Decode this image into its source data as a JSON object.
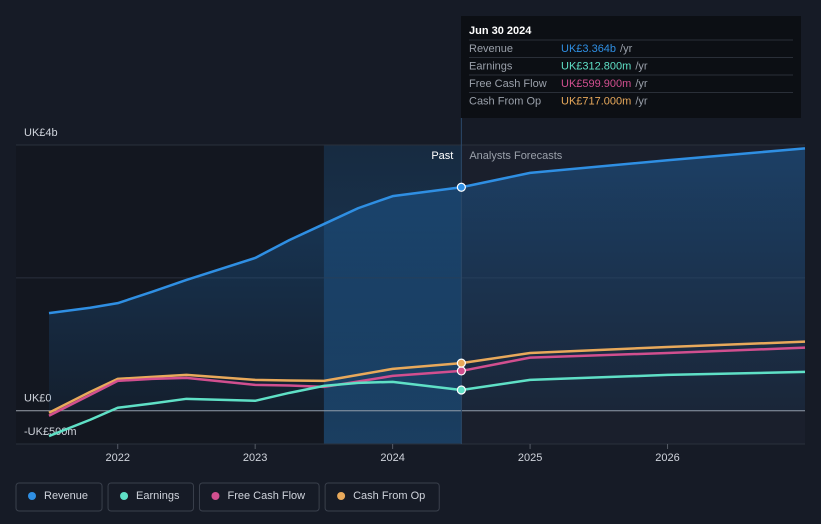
{
  "chart_data": {
    "type": "line",
    "x": [
      2021.5,
      2021.8,
      2022,
      2022.25,
      2022.5,
      2023,
      2023.25,
      2023.5,
      2023.75,
      2024,
      2024.5,
      2025,
      2026,
      2027
    ],
    "series": [
      {
        "name": "Revenue",
        "color": "#2f8fe3",
        "values": [
          1470,
          1550,
          1620,
          1790,
          1970,
          2300,
          2570,
          2810,
          3050,
          3230,
          3364,
          3580,
          3770,
          3950
        ]
      },
      {
        "name": "Earnings",
        "color": "#5fe0c6",
        "values": [
          -380,
          -135,
          45,
          110,
          180,
          150,
          270,
          375,
          420,
          435,
          312.8,
          465,
          540,
          585
        ]
      },
      {
        "name": "Free Cash Flow",
        "color": "#d14f8f",
        "values": [
          -75,
          240,
          450,
          480,
          495,
          390,
          380,
          360,
          440,
          525,
          599.9,
          800,
          870,
          950
        ]
      },
      {
        "name": "Cash From Op",
        "color": "#e8a95b",
        "values": [
          -30,
          285,
          480,
          510,
          540,
          465,
          455,
          450,
          540,
          630,
          717,
          870,
          960,
          1040
        ]
      }
    ],
    "xlim": [
      2021.26,
      2027
    ],
    "xticks": [
      2022,
      2023,
      2024,
      2025,
      2026
    ],
    "ylim": [
      -500,
      4000
    ],
    "yticks": [
      {
        "value": -500,
        "label": "-UK£500m"
      },
      {
        "value": 0,
        "label": "UK£0"
      },
      {
        "value": 2000,
        "label": null
      },
      {
        "value": 4000,
        "label": "UK£4b"
      }
    ],
    "grid": true,
    "highlight": [
      2023.5,
      2024.5
    ],
    "forecast_start": 2024.5,
    "past_label": "Past",
    "forecast_label": "Analysts Forecasts",
    "tooltip": {
      "date": "Jun 30 2024",
      "suffix": "/yr",
      "rows": [
        {
          "label": "Revenue",
          "value": "UK£3.364b"
        },
        {
          "label": "Earnings",
          "value": "UK£312.800m"
        },
        {
          "label": "Free Cash Flow",
          "value": "UK£599.900m"
        },
        {
          "label": "Cash From Op",
          "value": "UK£717.000m"
        }
      ]
    }
  }
}
